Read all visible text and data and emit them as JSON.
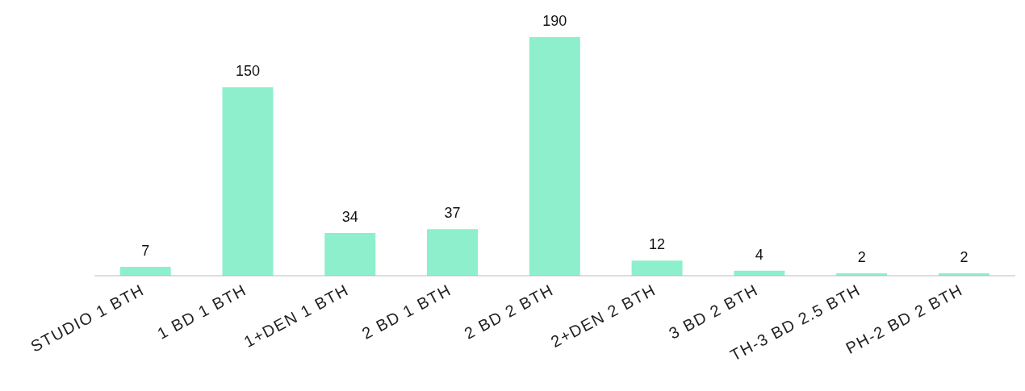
{
  "chart_data": {
    "type": "bar",
    "categories": [
      "STUDIO 1 BTH",
      "1 BD 1 BTH",
      "1+DEN 1 BTH",
      "2 BD 1 BTH",
      "2 BD 2 BTH",
      "2+DEN 2 BTH",
      "3 BD 2 BTH",
      "TH-3 BD 2.5 BTH",
      "PH-2 BD 2 BTH"
    ],
    "values": [
      7,
      150,
      34,
      37,
      190,
      12,
      4,
      2,
      2
    ],
    "color": "#8eefcc",
    "data_labels": true,
    "grid": false,
    "legend": false
  }
}
